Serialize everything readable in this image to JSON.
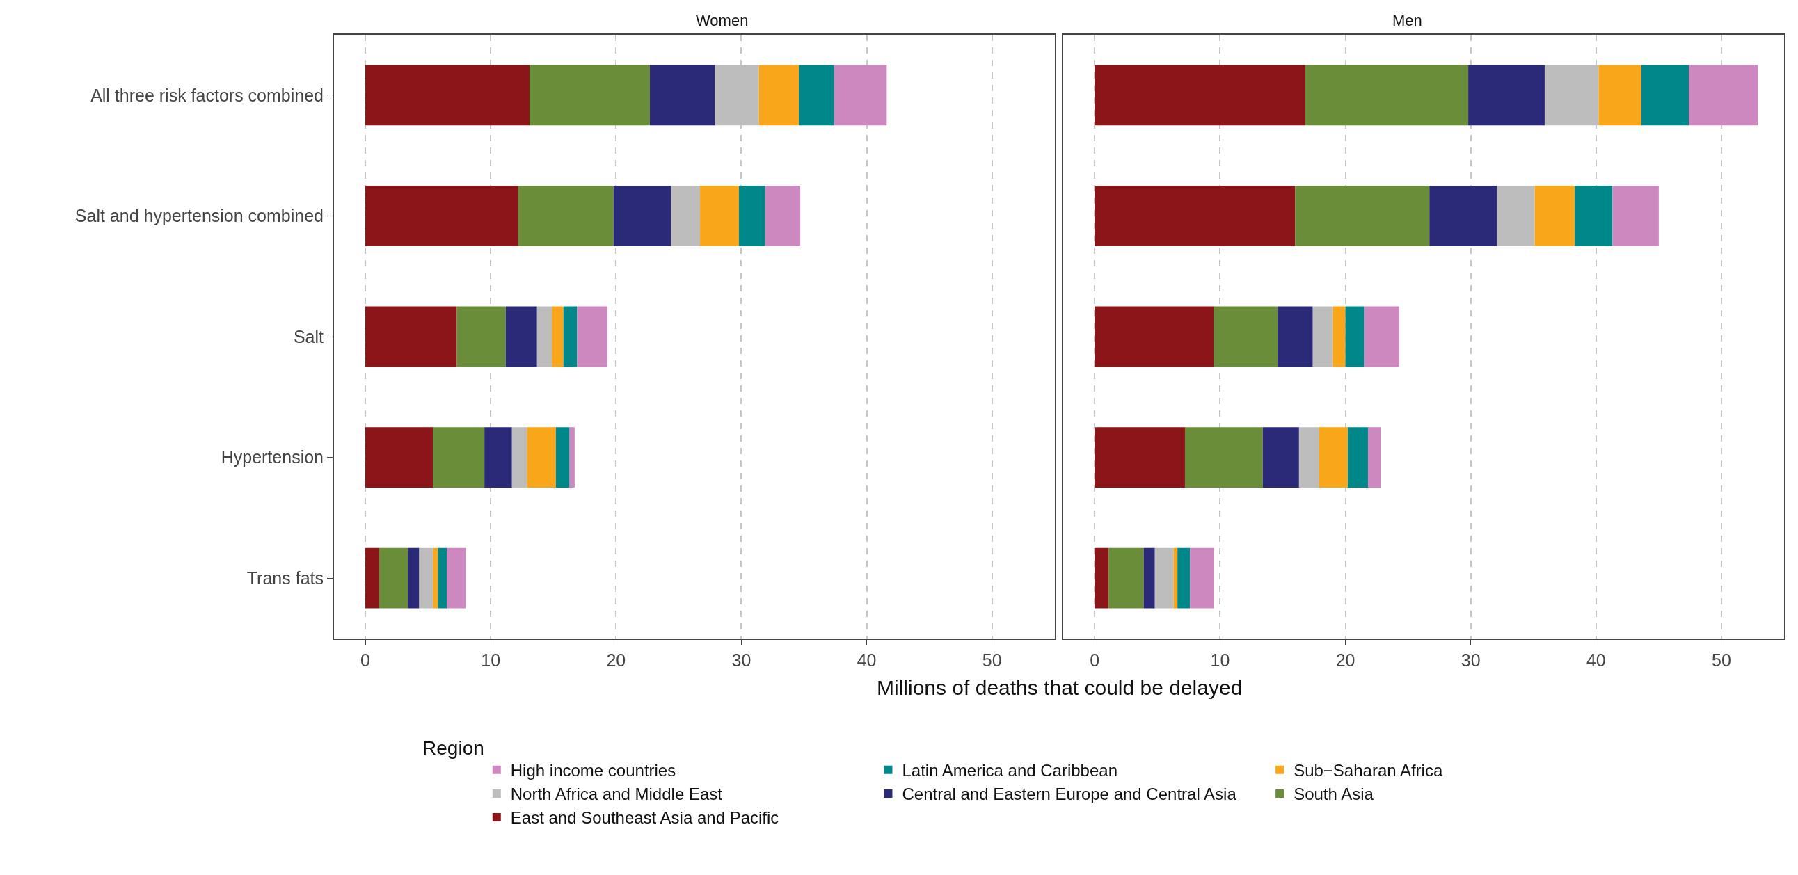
{
  "chart_data": [
    {
      "type": "bar",
      "title": "Women",
      "xlabel": "Millions of deaths that could be delayed",
      "orientation": "horizontal",
      "stacked": true,
      "grid": "x",
      "legend": "bottom",
      "legend_title": "Region",
      "categories": [
        "All three risk factors combined",
        "Salt and hypertension combined",
        "Salt",
        "Hypertension",
        "Trans fats"
      ],
      "xlim": [
        -2.5,
        55
      ],
      "xticks": [
        0,
        10,
        20,
        30,
        40,
        50
      ],
      "series": [
        {
          "name": "East and Southeast Asia and Pacific",
          "color": "#8b1518",
          "values": [
            13.1,
            12.2,
            7.3,
            5.4,
            1.1
          ]
        },
        {
          "name": "South Asia",
          "color": "#6a8d3a",
          "values": [
            9.6,
            7.6,
            3.9,
            4.1,
            2.3
          ]
        },
        {
          "name": "Central and Eastern Europe and Central Asia",
          "color": "#2a2a78",
          "values": [
            5.2,
            4.6,
            2.5,
            2.2,
            0.9
          ]
        },
        {
          "name": "North Africa and Middle East",
          "color": "#bdbdbd",
          "values": [
            3.5,
            2.3,
            1.2,
            1.2,
            1.1
          ]
        },
        {
          "name": "Sub−Saharan Africa",
          "color": "#f9a61a",
          "values": [
            3.2,
            3.1,
            0.9,
            2.3,
            0.4
          ]
        },
        {
          "name": "Latin America and Caribbean",
          "color": "#00878a",
          "values": [
            2.8,
            2.1,
            1.1,
            1.1,
            0.7
          ]
        },
        {
          "name": "High income countries",
          "color": "#cc88bf",
          "values": [
            4.2,
            2.8,
            2.4,
            0.4,
            1.5
          ]
        }
      ]
    },
    {
      "type": "bar",
      "title": "Men",
      "orientation": "horizontal",
      "stacked": true,
      "grid": "x",
      "tick_labels": "x",
      "categories": [
        "All three risk factors combined",
        "Salt and hypertension combined",
        "Salt",
        "Hypertension",
        "Trans fats"
      ],
      "xlim": [
        -2.5,
        55
      ],
      "xticks": [
        0,
        10,
        20,
        30,
        40,
        50
      ],
      "series": [
        {
          "name": "East and Southeast Asia and Pacific",
          "color": "#8b1518",
          "values": [
            16.8,
            16.0,
            9.5,
            7.2,
            1.1
          ]
        },
        {
          "name": "South Asia",
          "color": "#6a8d3a",
          "values": [
            13.0,
            10.7,
            5.1,
            6.2,
            2.8
          ]
        },
        {
          "name": "Central and Eastern Europe and Central Asia",
          "color": "#2a2a78",
          "values": [
            6.1,
            5.4,
            2.8,
            2.9,
            0.9
          ]
        },
        {
          "name": "North Africa and Middle East",
          "color": "#bdbdbd",
          "values": [
            4.3,
            3.0,
            1.6,
            1.6,
            1.5
          ]
        },
        {
          "name": "Sub−Saharan Africa",
          "color": "#f9a61a",
          "values": [
            3.4,
            3.2,
            1.0,
            2.3,
            0.3
          ]
        },
        {
          "name": "Latin America and Caribbean",
          "color": "#00878a",
          "values": [
            3.8,
            3.0,
            1.5,
            1.6,
            1.0
          ]
        },
        {
          "name": "High income countries",
          "color": "#cc88bf",
          "values": [
            5.5,
            3.7,
            2.8,
            1.0,
            1.9
          ]
        }
      ]
    }
  ]
}
